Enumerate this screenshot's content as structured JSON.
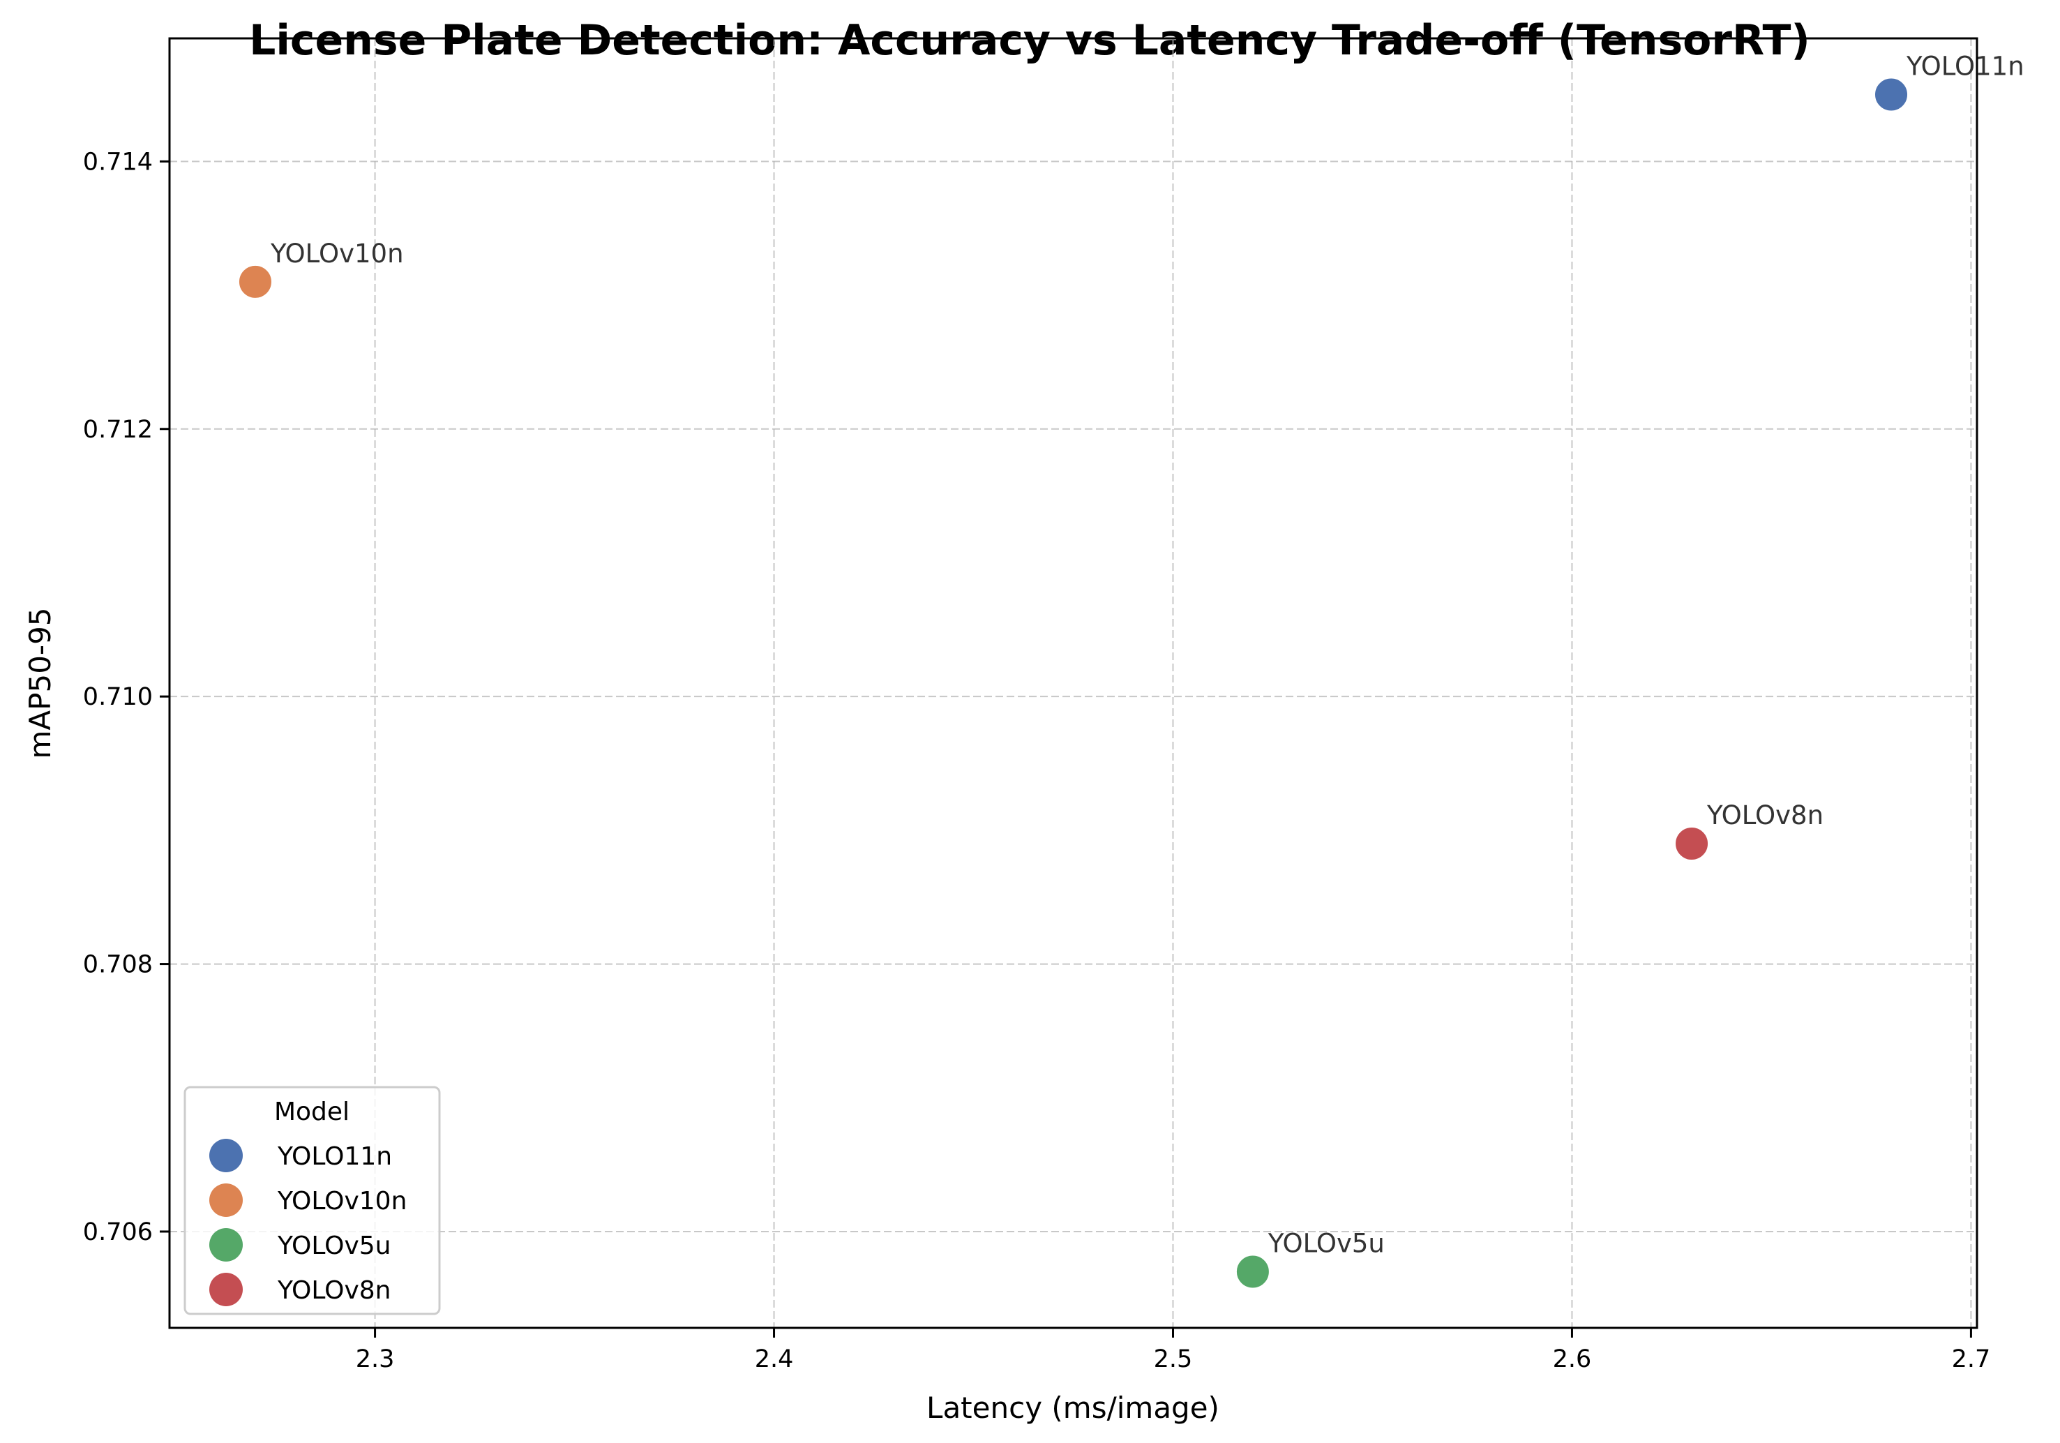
{
  "chart_data": {
    "type": "scatter",
    "title": "License Plate Detection: Accuracy vs Latency Trade-off (TensorRT)",
    "xlabel": "Latency (ms/image)",
    "ylabel": "mAP50-95",
    "xlim": [
      2.2485,
      2.7015
    ],
    "ylim": [
      0.70528,
      0.71492
    ],
    "xticks": [
      2.3,
      2.4,
      2.5,
      2.6,
      2.7
    ],
    "xtick_labels": [
      "2.3",
      "2.4",
      "2.5",
      "2.6",
      "2.7"
    ],
    "yticks": [
      0.706,
      0.708,
      0.71,
      0.712,
      0.714
    ],
    "ytick_labels": [
      "0.706",
      "0.708",
      "0.710",
      "0.712",
      "0.714"
    ],
    "grid": true,
    "legend": {
      "title": "Model",
      "placement": "lower-left"
    },
    "series": [
      {
        "name": "YOLO11n",
        "color": "#4c72b0",
        "x": 2.68,
        "y": 0.7145,
        "label": "YOLO11n"
      },
      {
        "name": "YOLOv10n",
        "color": "#dd8452",
        "x": 2.27,
        "y": 0.7131,
        "label": "YOLOv10n"
      },
      {
        "name": "YOLOv5u",
        "color": "#55a868",
        "x": 2.52,
        "y": 0.7057,
        "label": "YOLOv5u"
      },
      {
        "name": "YOLOv8n",
        "color": "#c44e52",
        "x": 2.63,
        "y": 0.7089,
        "label": "YOLOv8n"
      }
    ]
  }
}
